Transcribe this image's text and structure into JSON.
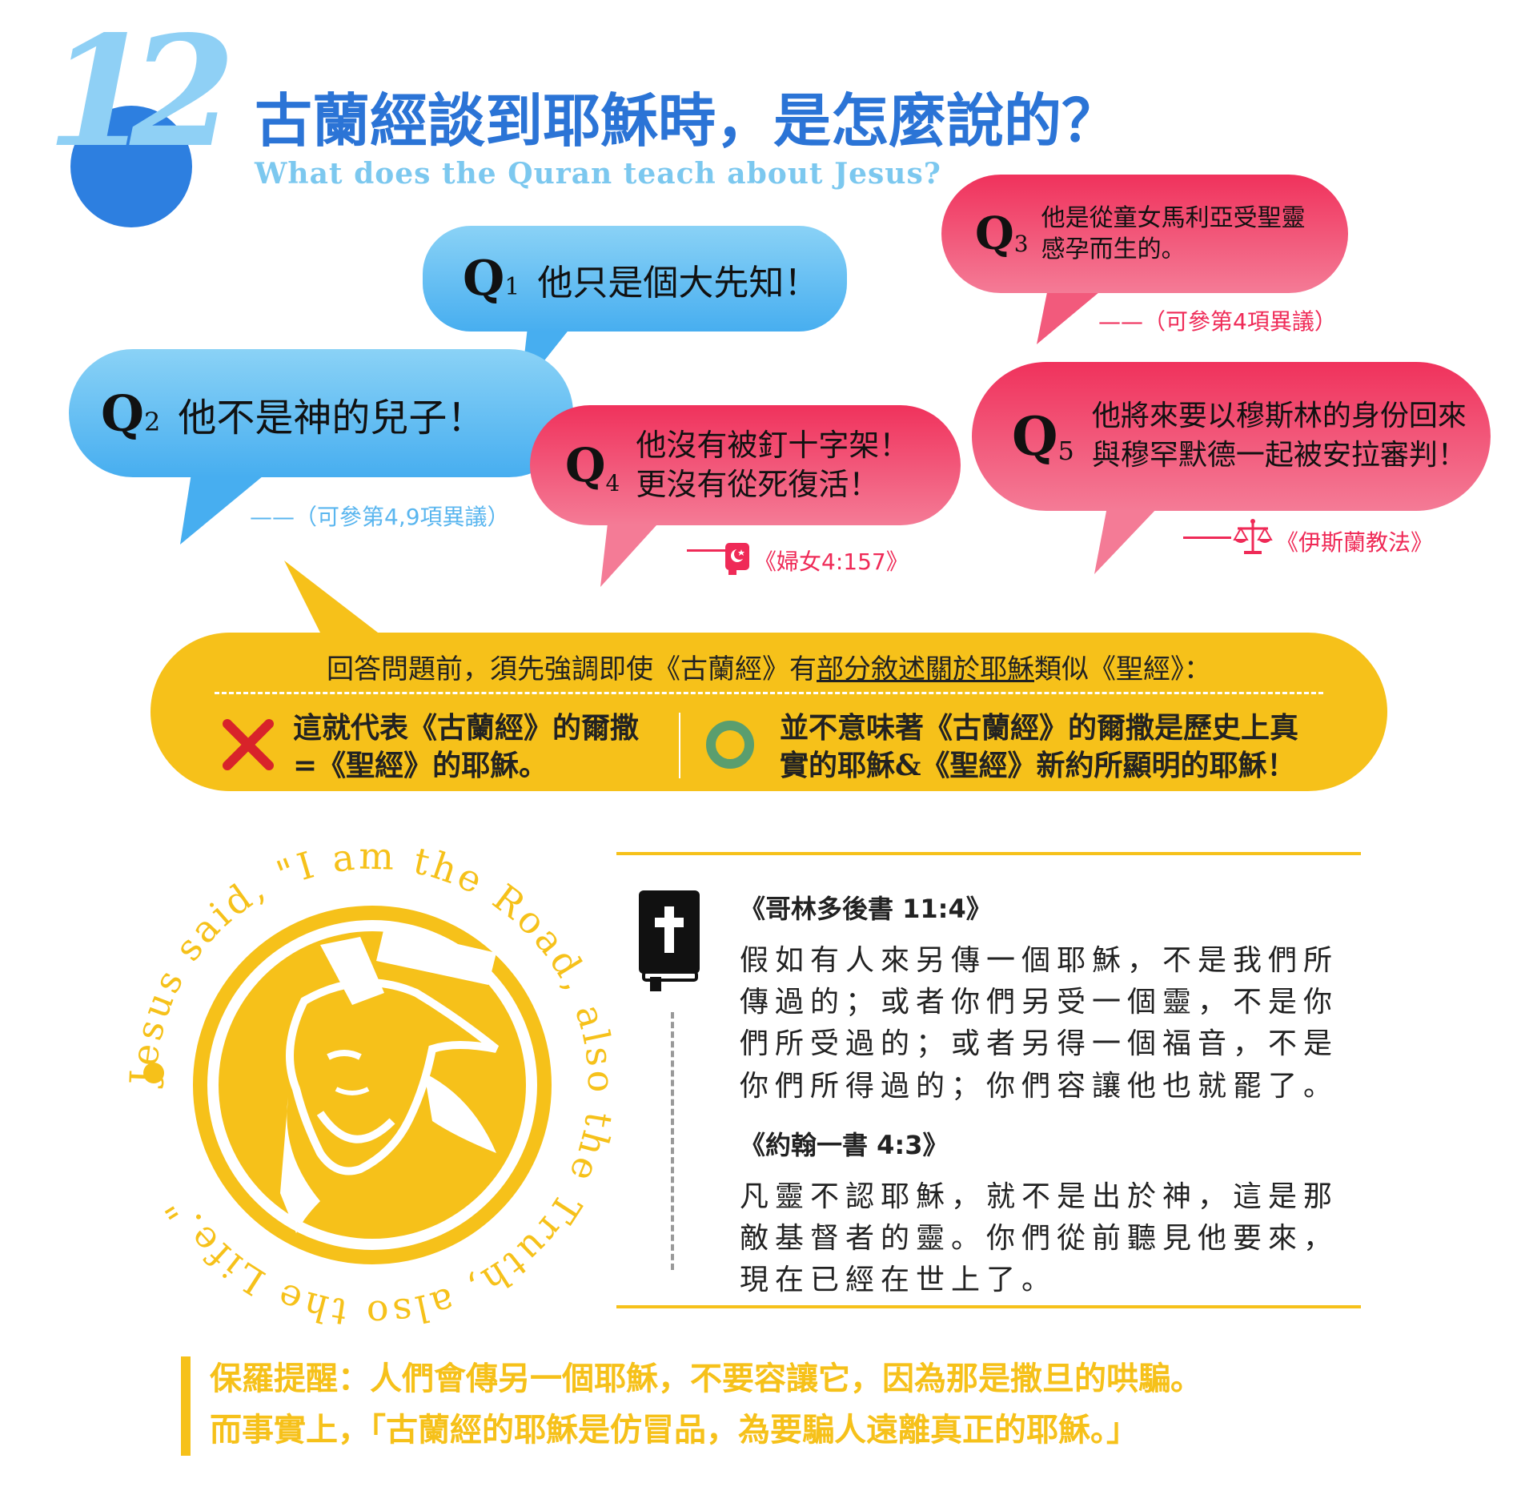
{
  "header": {
    "number": "12",
    "title": "古蘭經談到耶穌時，是怎麼說的？",
    "subtitle": "What does the Quran teach about Jesus?"
  },
  "bubbles": {
    "q1": {
      "label": "Q",
      "sub": "1",
      "text": "他只是個大先知！"
    },
    "q2": {
      "label": "Q",
      "sub": "2",
      "text": "他不是神的兒子！",
      "note": "——（可參第4,9項異議）"
    },
    "q3": {
      "label": "Q",
      "sub": "3",
      "line1": "他是從童女馬利亞受聖靈",
      "line2": "感孕而生的。",
      "note": "——（可參第4項異議）"
    },
    "q4": {
      "label": "Q",
      "sub": "4",
      "line1": "他沒有被釘十字架！",
      "line2": "更沒有從死復活！",
      "note": "《婦女4:157》"
    },
    "q5": {
      "label": "Q",
      "sub": "5",
      "line1": "他將來要以穆斯林的身份回來",
      "line2": "與穆罕默德一起被安拉審判！",
      "note": "《伊斯蘭教法》"
    }
  },
  "answer": {
    "intro_pre": "回答問題前，須先強調即使《古蘭經》有",
    "intro_underline": "部分敘述關於耶穌",
    "intro_post": "類似《聖經》：",
    "wrong_line1": "這就代表《古蘭經》的爾撒",
    "wrong_line2": "=《聖經》的耶穌。",
    "right_line1": "並不意味著《古蘭經》的爾撒是歷史上真",
    "right_line2": "實的耶穌&《聖經》新約所顯明的耶穌！"
  },
  "emblem": {
    "circle_text": "Jesus said, \"I am the Road, also the Truth, also the Life.\""
  },
  "scripture": [
    {
      "ref": "《哥林多後書 11:4》",
      "lines": [
        "假如有人來另傳一個耶穌，不是我們所",
        "傳過的；或者你們另受一個靈，不是你",
        "們所受過的；或者另得一個福音，不是",
        "你們所得過的；你們容讓他也就罷了。"
      ]
    },
    {
      "ref": "《約翰一書 4:3》",
      "lines": [
        "凡靈不認耶穌，就不是出於神，這是那",
        "敵基督者的靈。你們從前聽見他要來，",
        "現在已經在世上了。"
      ]
    }
  ],
  "footer": {
    "line1": "保羅提醒：人們會傳另一個耶穌，不要容讓它，因為那是撒旦的哄騙。",
    "line2": "而事實上，「古蘭經的耶穌是仿冒品，為要騙人遠離真正的耶穌。」"
  },
  "colors": {
    "blue": "#47aef0",
    "pink": "#f0325c",
    "yellow": "#f6c11a",
    "title_blue": "#2b74d6"
  }
}
